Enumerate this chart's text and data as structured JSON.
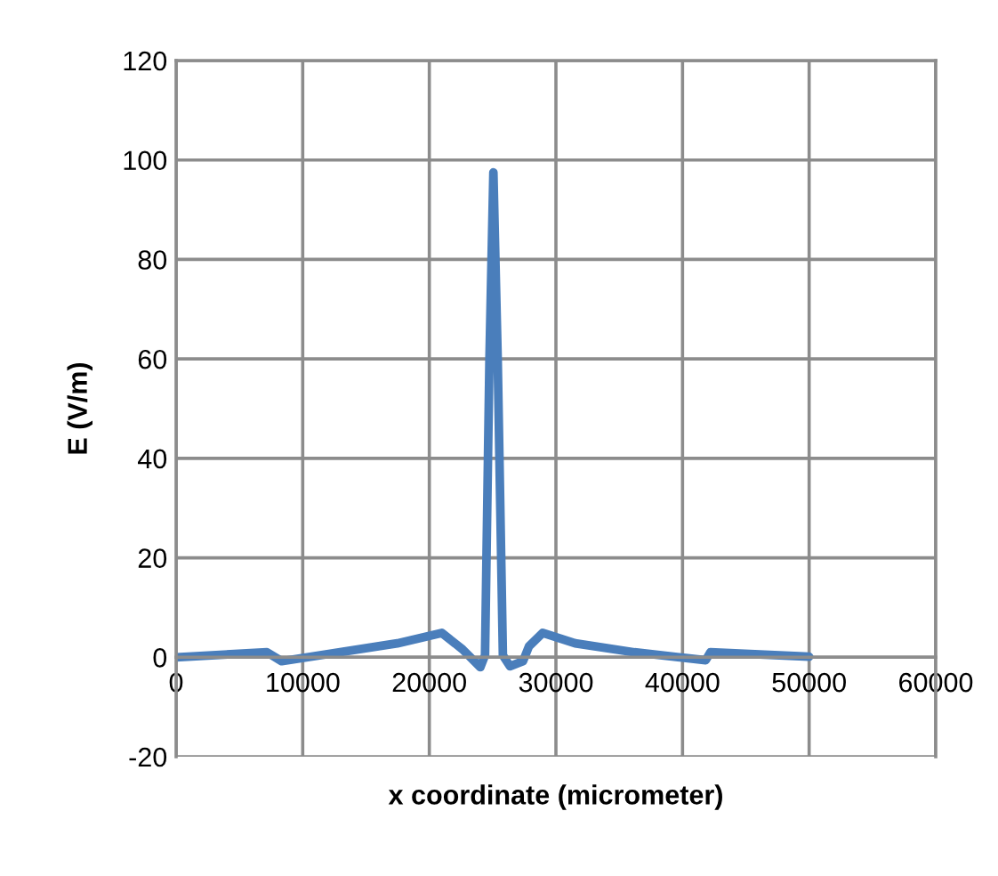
{
  "chart_data": {
    "type": "line",
    "xlabel": "x coordinate (micrometer)",
    "ylabel": "E (V/m)",
    "series": [
      {
        "color": "#4a7ebb",
        "x": [
          0,
          7170,
          8340,
          17470,
          20980,
          22620,
          24030,
          24400,
          24750,
          25060,
          25400,
          25810,
          26370,
          27400,
          27870,
          28950,
          31520,
          36200,
          41830,
          42200,
          50000
        ],
        "values": [
          0,
          1,
          -0.8,
          2.8,
          4.9,
          1.6,
          -2,
          0.4,
          60,
          97.5,
          60,
          0.4,
          -1.8,
          -0.8,
          2.2,
          4.9,
          2.8,
          1,
          -0.6,
          1,
          0.1
        ]
      }
    ],
    "xlim": [
      0,
      60000
    ],
    "xticks": [
      0,
      10000,
      20000,
      30000,
      40000,
      50000,
      60000
    ],
    "ylim": [
      -20,
      120
    ],
    "yticks": [
      -20,
      0,
      20,
      40,
      60,
      80,
      100,
      120
    ],
    "grid": true,
    "marker": "none",
    "line_style": "solid"
  }
}
